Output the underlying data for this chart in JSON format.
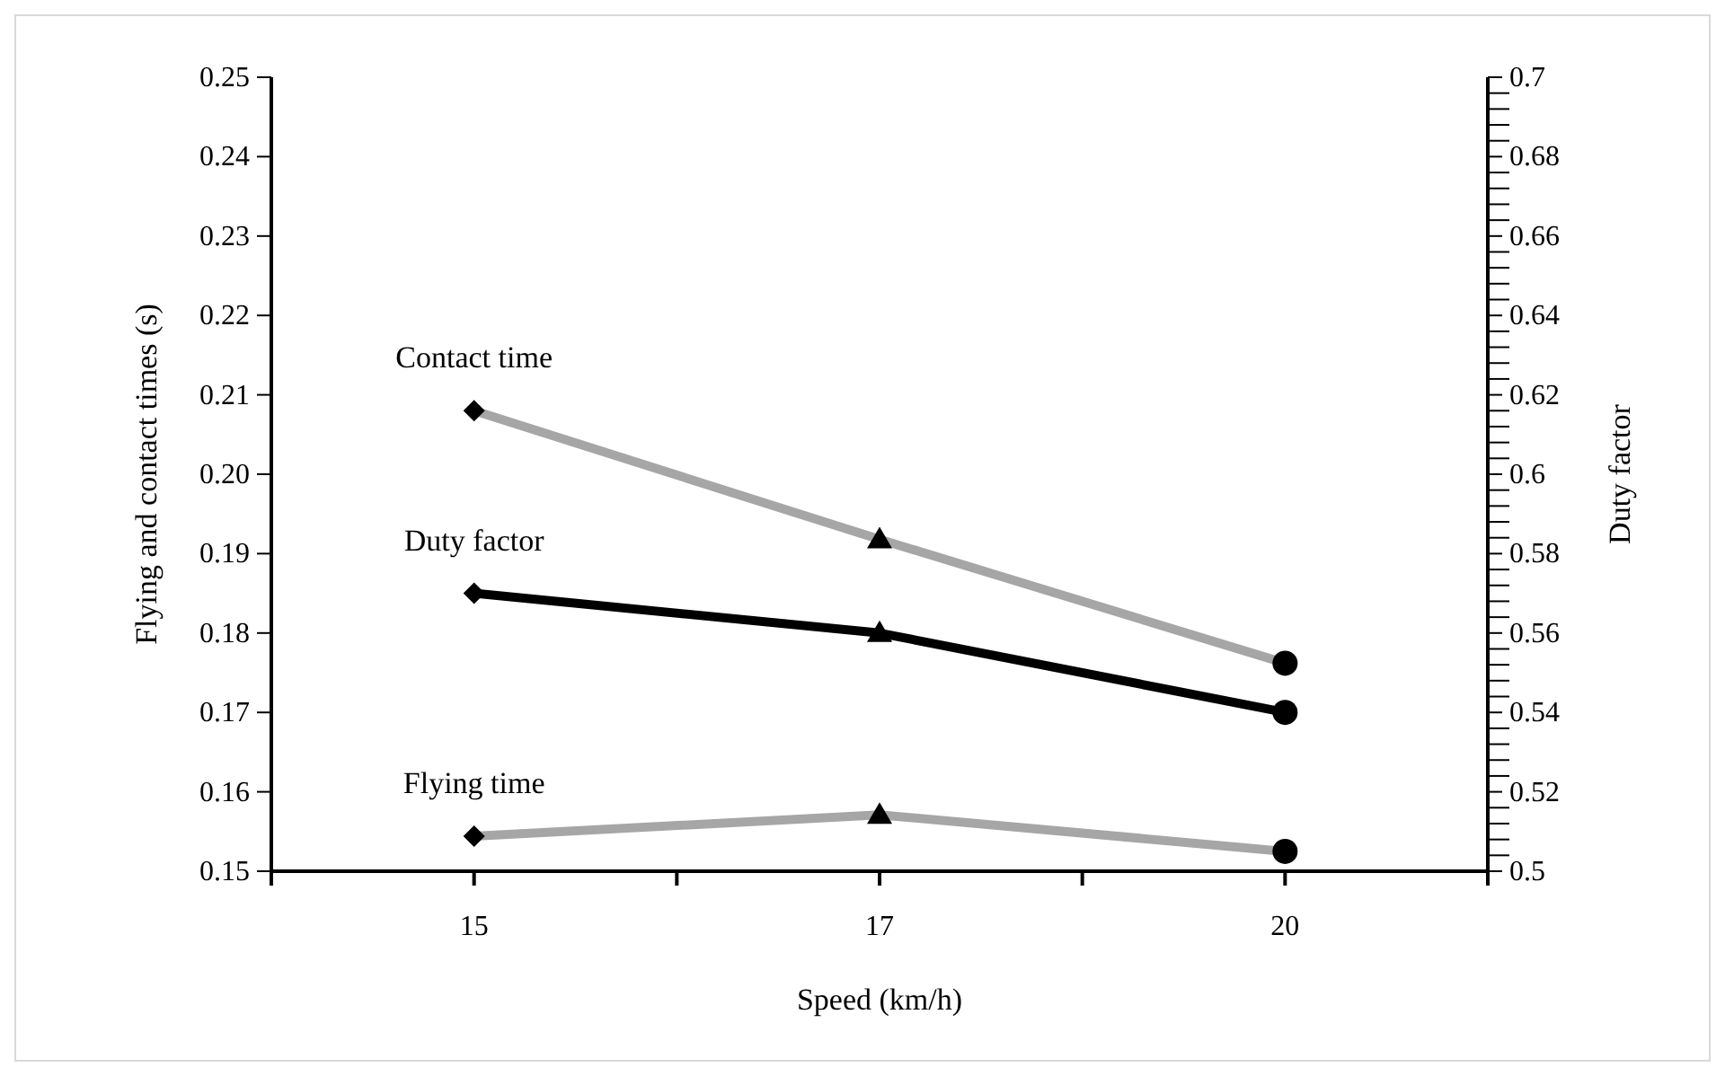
{
  "chart_data": {
    "type": "line",
    "xlabel": "Speed (km/h)",
    "ylabel": "Flying and contact times (s)",
    "y2label": "Duty factor",
    "categories": [
      "15",
      "17",
      "20"
    ],
    "series": [
      {
        "name": "Contact time",
        "color": "#a6a6a6",
        "values": [
          0.208,
          0.1918,
          0.1762
        ]
      },
      {
        "name": "Duty factor",
        "color": "#000000",
        "values": [
          0.57,
          0.56,
          0.54
        ],
        "axis": "y2"
      },
      {
        "name": "Flying time",
        "color": "#a6a6a6",
        "values": [
          0.1544,
          0.1571,
          0.1525
        ]
      }
    ],
    "marker": [
      "diamond",
      "triangle",
      "circle"
    ],
    "ylim": [
      0.15,
      0.25
    ],
    "yticks": [
      0.15,
      0.16,
      0.17,
      0.18,
      0.19,
      {
        "value": 0.2,
        "label": "0.20"
      },
      0.21,
      0.22,
      0.23,
      0.24,
      0.25
    ],
    "y2lim": [
      0.5,
      0.7
    ],
    "y2ticks": [
      0.5,
      {
        "value": 0.504,
        "label": null
      },
      {
        "value": 0.508,
        "label": null
      },
      {
        "value": 0.512,
        "label": null
      },
      {
        "value": 0.516,
        "label": null
      },
      0.52,
      {
        "value": 0.524,
        "label": null
      },
      {
        "value": 0.528,
        "label": null
      },
      {
        "value": 0.532,
        "label": null
      },
      {
        "value": 0.536,
        "label": null
      },
      0.54,
      {
        "value": 0.544,
        "label": null
      },
      {
        "value": 0.548,
        "label": null
      },
      {
        "value": 0.552,
        "label": null
      },
      {
        "value": 0.556,
        "label": null
      },
      0.56,
      {
        "value": 0.564,
        "label": null
      },
      {
        "value": 0.568,
        "label": null
      },
      {
        "value": 0.572,
        "label": null
      },
      {
        "value": 0.576,
        "label": null
      },
      0.58,
      {
        "value": 0.584,
        "label": null
      },
      {
        "value": 0.588,
        "label": null
      },
      {
        "value": 0.592,
        "label": null
      },
      {
        "value": 0.596,
        "label": null
      },
      0.6,
      {
        "value": 0.604,
        "label": null
      },
      {
        "value": 0.608,
        "label": null
      },
      {
        "value": 0.612,
        "label": null
      },
      {
        "value": 0.616,
        "label": null
      },
      0.62,
      {
        "value": 0.624,
        "label": null
      },
      {
        "value": 0.628,
        "label": null
      },
      {
        "value": 0.632,
        "label": null
      },
      {
        "value": 0.636,
        "label": null
      },
      0.64,
      {
        "value": 0.644,
        "label": null
      },
      {
        "value": 0.648,
        "label": null
      },
      {
        "value": 0.652,
        "label": null
      },
      {
        "value": 0.656,
        "label": null
      },
      0.66,
      {
        "value": 0.664,
        "label": null
      },
      {
        "value": 0.668,
        "label": null
      },
      {
        "value": 0.672,
        "label": null
      },
      {
        "value": 0.676,
        "label": null
      },
      0.68,
      {
        "value": 0.684,
        "label": null
      },
      {
        "value": 0.688,
        "label": null
      },
      {
        "value": 0.692,
        "label": null
      },
      {
        "value": 0.696,
        "label": null
      },
      0.7
    ],
    "grid": false,
    "legend": false
  }
}
